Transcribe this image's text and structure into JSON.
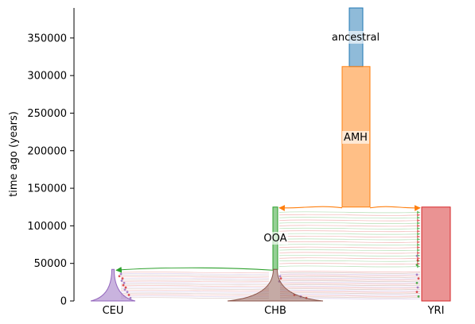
{
  "chart_data": {
    "type": "diagram",
    "ylabel": "time ago (years)",
    "ylim": [
      0,
      390000
    ],
    "yticks": [
      {
        "value": 0,
        "label": "0"
      },
      {
        "value": 50000,
        "label": "50000"
      },
      {
        "value": 100000,
        "label": "100000"
      },
      {
        "value": 150000,
        "label": "150000"
      },
      {
        "value": 200000,
        "label": "200000"
      },
      {
        "value": 250000,
        "label": "250000"
      },
      {
        "value": 300000,
        "label": "300000"
      },
      {
        "value": 350000,
        "label": "350000"
      }
    ],
    "demes": [
      {
        "name": "ancestral",
        "label": "ancestral",
        "start_time": 390000,
        "end_time": 312000,
        "color": "#1f77b4"
      },
      {
        "name": "AMH",
        "label": "AMH",
        "start_time": 312000,
        "end_time": 125000,
        "color": "#ff7f0e"
      },
      {
        "name": "OOA",
        "label": "OOA",
        "start_time": 125000,
        "end_time": 42000,
        "color": "#2ca02c"
      },
      {
        "name": "YRI",
        "label": "YRI",
        "start_time": 125000,
        "end_time": 0,
        "color": "#d62728"
      },
      {
        "name": "CEU",
        "label": "CEU",
        "start_time": 42000,
        "end_time": 0,
        "color": "#9467bd"
      },
      {
        "name": "CHB",
        "label": "CHB",
        "start_time": 42000,
        "end_time": 0,
        "color": "#8c564b"
      }
    ],
    "branch_events": [
      {
        "parent": "AMH",
        "children": [
          "OOA",
          "YRI"
        ],
        "time": 125000
      },
      {
        "parent": "OOA",
        "children": [
          "CEU",
          "CHB"
        ],
        "time": 42000
      }
    ],
    "grid": false,
    "legend": "none"
  },
  "colors": {
    "ancestral": "#1f77b4",
    "AMH": "#ff7f0e",
    "OOA": "#2ca02c",
    "YRI": "#d62728",
    "CEU": "#9467bd",
    "CHB": "#8c564b"
  }
}
